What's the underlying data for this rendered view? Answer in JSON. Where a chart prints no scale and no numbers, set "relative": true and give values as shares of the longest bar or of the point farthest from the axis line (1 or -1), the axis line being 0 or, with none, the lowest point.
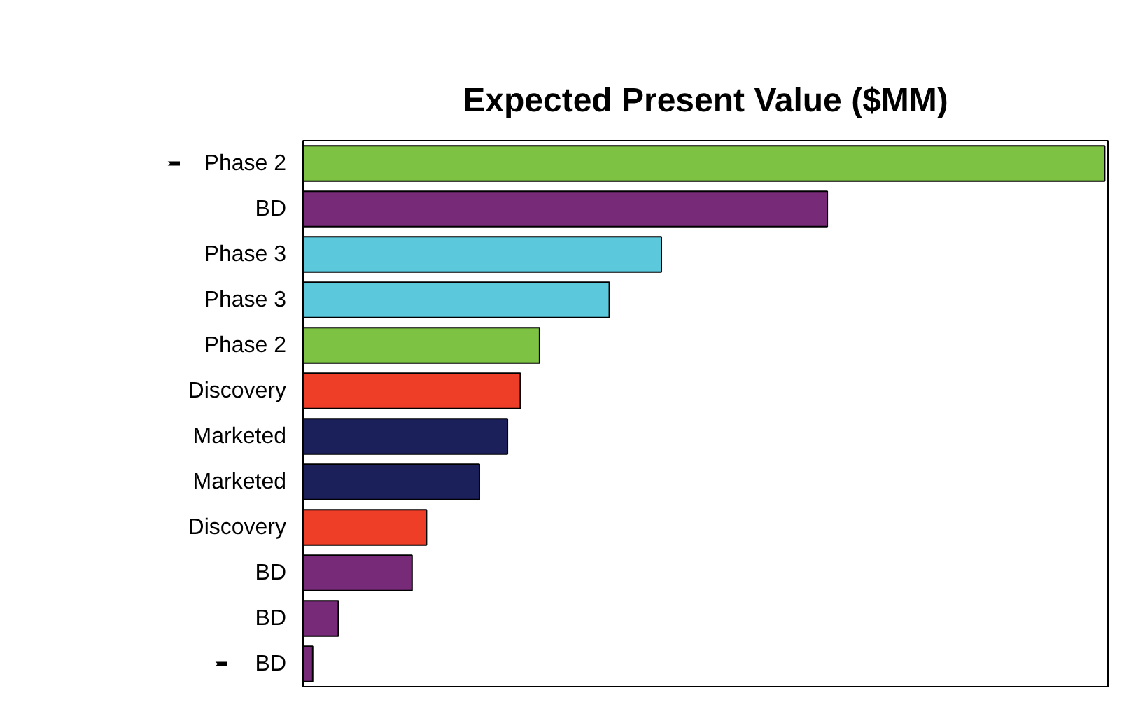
{
  "chart_data": {
    "type": "bar",
    "orientation": "horizontal",
    "relative": true,
    "title": "Expected Present Value ($MM)",
    "categories": [
      "Phase 2",
      "BD",
      "Phase 3",
      "Phase 3",
      "Phase 2",
      "Discovery",
      "Marketed",
      "Marketed",
      "Discovery",
      "BD",
      "BD",
      "BD"
    ],
    "values": [
      1,
      0.654,
      0.447,
      0.382,
      0.295,
      0.271,
      0.255,
      0.22,
      0.154,
      0.136,
      0.044,
      0.012
    ],
    "colors": [
      "#7dc242",
      "#772a77",
      "#5bc8db",
      "#5bc8db",
      "#7dc242",
      "#ee3e28",
      "#1b1f5a",
      "#1b1f5a",
      "#ee3e28",
      "#772a77",
      "#772a77",
      "#772a77"
    ],
    "grid": false
  }
}
